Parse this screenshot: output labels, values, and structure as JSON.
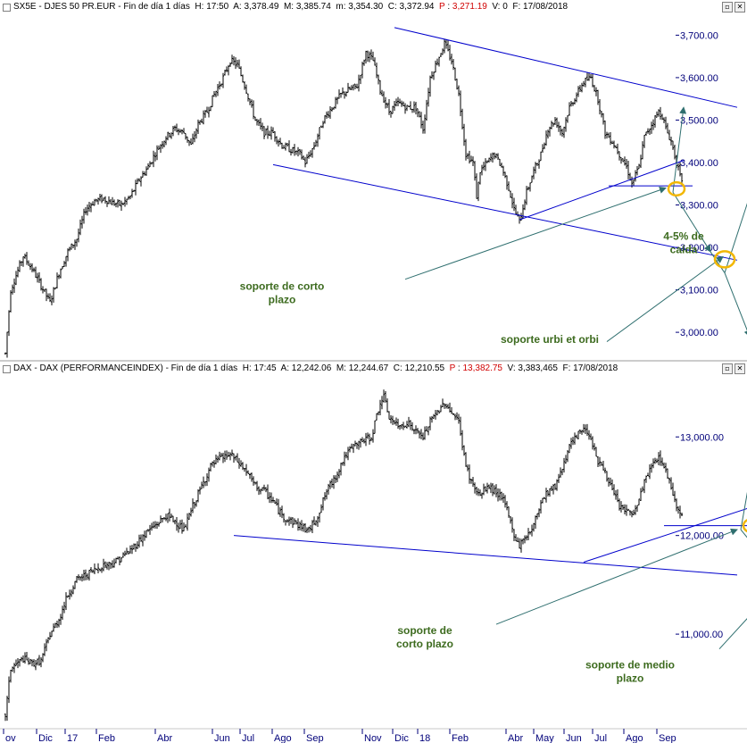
{
  "chart_data": [
    {
      "type": "ohlc",
      "header": {
        "prefix": "SX5E - DJES 50 PR.EUR - Fin de día 1 días",
        "H": "17:50",
        "A": "3,378.49",
        "M": "3,385.74",
        "m": "3,354.30",
        "C": "3,372.94",
        "P": "3,271.19",
        "V": "0",
        "F": "17/08/2018"
      },
      "y_ticks": [
        {
          "value": 3000,
          "label": "3,000.00"
        },
        {
          "value": 3100,
          "label": "3,100.00"
        },
        {
          "value": 3200,
          "label": "3,200.00"
        },
        {
          "value": 3300,
          "label": "3,300.00"
        },
        {
          "value": 3400,
          "label": "3,400.00"
        },
        {
          "value": 3500,
          "label": "3,500.00"
        },
        {
          "value": 3600,
          "label": "3,600.00"
        },
        {
          "value": 3700,
          "label": "3,700.00"
        }
      ],
      "ylim": [
        2935,
        3745
      ],
      "price_path": [
        [
          0,
          2950
        ],
        [
          3,
          3100
        ],
        [
          10,
          3180
        ],
        [
          15,
          3150
        ],
        [
          20,
          3110
        ],
        [
          25,
          3070
        ],
        [
          30,
          3140
        ],
        [
          35,
          3190
        ],
        [
          40,
          3220
        ],
        [
          45,
          3290
        ],
        [
          50,
          3310
        ],
        [
          55,
          3315
        ],
        [
          60,
          3305
        ],
        [
          65,
          3300
        ],
        [
          70,
          3320
        ],
        [
          75,
          3360
        ],
        [
          80,
          3390
        ],
        [
          85,
          3430
        ],
        [
          90,
          3460
        ],
        [
          95,
          3480
        ],
        [
          100,
          3470
        ],
        [
          104,
          3440
        ],
        [
          108,
          3490
        ],
        [
          113,
          3520
        ],
        [
          117,
          3560
        ],
        [
          122,
          3600
        ],
        [
          126,
          3640
        ],
        [
          130,
          3630
        ],
        [
          135,
          3570
        ],
        [
          140,
          3500
        ],
        [
          145,
          3470
        ],
        [
          150,
          3470
        ],
        [
          155,
          3440
        ],
        [
          160,
          3430
        ],
        [
          165,
          3420
        ],
        [
          168,
          3400
        ],
        [
          173,
          3440
        ],
        [
          178,
          3500
        ],
        [
          183,
          3530
        ],
        [
          188,
          3560
        ],
        [
          192,
          3570
        ],
        [
          197,
          3580
        ],
        [
          202,
          3660
        ],
        [
          206,
          3640
        ],
        [
          210,
          3570
        ],
        [
          215,
          3520
        ],
        [
          220,
          3540
        ],
        [
          225,
          3530
        ],
        [
          230,
          3530
        ],
        [
          234,
          3480
        ],
        [
          238,
          3600
        ],
        [
          242,
          3640
        ],
        [
          246,
          3680
        ],
        [
          250,
          3640
        ],
        [
          254,
          3560
        ],
        [
          258,
          3420
        ],
        [
          262,
          3400
        ],
        [
          264,
          3320
        ],
        [
          266,
          3380
        ],
        [
          270,
          3400
        ],
        [
          274,
          3420
        ],
        [
          278,
          3390
        ],
        [
          282,
          3340
        ],
        [
          285,
          3290
        ],
        [
          288,
          3260
        ],
        [
          292,
          3330
        ],
        [
          296,
          3380
        ],
        [
          300,
          3420
        ],
        [
          304,
          3480
        ],
        [
          308,
          3500
        ],
        [
          312,
          3470
        ],
        [
          316,
          3530
        ],
        [
          320,
          3560
        ],
        [
          324,
          3590
        ],
        [
          328,
          3600
        ],
        [
          332,
          3550
        ],
        [
          336,
          3470
        ],
        [
          340,
          3450
        ],
        [
          344,
          3420
        ],
        [
          348,
          3390
        ],
        [
          351,
          3350
        ],
        [
          355,
          3390
        ],
        [
          358,
          3460
        ],
        [
          362,
          3490
        ],
        [
          366,
          3520
        ],
        [
          368,
          3510
        ],
        [
          370,
          3480
        ],
        [
          373,
          3450
        ],
        [
          376,
          3400
        ],
        [
          379,
          3350
        ],
        [
          380,
          3373
        ]
      ],
      "lines": [
        {
          "from": [
            218,
            3718
          ],
          "to": [
            410,
            3530
          ]
        },
        {
          "from": [
            150,
            3395
          ],
          "to": [
            410,
            3170
          ]
        },
        {
          "from": [
            288,
            3265
          ],
          "to": [
            380,
            3405
          ]
        },
        {
          "from": [
            338,
            3345
          ],
          "to": [
            385,
            3345
          ]
        }
      ],
      "arrows": [
        {
          "from": [
            224,
            3125
          ],
          "to": [
            370,
            3340
          ]
        },
        {
          "from": [
            337,
            2978
          ],
          "to": [
            402,
            3178
          ]
        },
        {
          "from": [
            374,
            3330
          ],
          "to": [
            380,
            3530
          ]
        },
        {
          "from": [
            374,
            3330
          ],
          "to": [
            395,
            3190
          ]
        },
        {
          "from": [
            395,
            3190
          ],
          "to": [
            403,
            3140
          ],
          "head": false
        },
        {
          "from": [
            403,
            3140
          ],
          "to": [
            417,
            2990
          ]
        },
        {
          "from": [
            403,
            3140
          ],
          "to": [
            427,
            3450
          ]
        }
      ],
      "circles": [
        {
          "center": [
            376,
            3338
          ],
          "r": 9
        },
        {
          "center": [
            403,
            3172
          ],
          "r": 11
        }
      ],
      "annotations": [
        {
          "lines": [
            "4-5% de",
            "caída"
          ],
          "at": [
            380,
            3218
          ]
        },
        {
          "lines": [
            "soporte de corto",
            "plazo"
          ],
          "at": [
            155,
            3100
          ]
        },
        {
          "lines": [
            "soporte urbi et orbi"
          ],
          "at": [
            305,
            2975
          ]
        }
      ]
    },
    {
      "type": "ohlc",
      "header": {
        "prefix": "DAX - DAX (PERFORMANCEINDEX) - Fin de día 1 días",
        "H": "17:45",
        "A": "12,242.06",
        "M": "12,244.67",
        "m": "12,135.64",
        "C": "12,210.55",
        "P": "13,382.75",
        "V": "3,383,465",
        "F": "17/08/2018"
      },
      "y_ticks": [
        {
          "value": 11000,
          "label": "11,000.00"
        },
        {
          "value": 12000,
          "label": "12,000.00"
        },
        {
          "value": 13000,
          "label": "13,000.00"
        }
      ],
      "ylim": [
        10050,
        13600
      ],
      "price_path": [
        [
          0,
          10180
        ],
        [
          3,
          10650
        ],
        [
          10,
          10750
        ],
        [
          15,
          10700
        ],
        [
          20,
          10730
        ],
        [
          25,
          11000
        ],
        [
          30,
          11150
        ],
        [
          35,
          11400
        ],
        [
          40,
          11550
        ],
        [
          45,
          11600
        ],
        [
          50,
          11650
        ],
        [
          55,
          11700
        ],
        [
          60,
          11720
        ],
        [
          65,
          11780
        ],
        [
          70,
          11850
        ],
        [
          75,
          11950
        ],
        [
          80,
          12050
        ],
        [
          85,
          12120
        ],
        [
          90,
          12200
        ],
        [
          95,
          12150
        ],
        [
          100,
          12050
        ],
        [
          105,
          12300
        ],
        [
          110,
          12500
        ],
        [
          115,
          12700
        ],
        [
          120,
          12780
        ],
        [
          126,
          12820
        ],
        [
          130,
          12750
        ],
        [
          135,
          12650
        ],
        [
          140,
          12500
        ],
        [
          145,
          12450
        ],
        [
          150,
          12350
        ],
        [
          155,
          12200
        ],
        [
          160,
          12150
        ],
        [
          165,
          12100
        ],
        [
          170,
          12050
        ],
        [
          175,
          12200
        ],
        [
          180,
          12450
        ],
        [
          185,
          12600
        ],
        [
          190,
          12800
        ],
        [
          195,
          12900
        ],
        [
          200,
          12960
        ],
        [
          205,
          13000
        ],
        [
          210,
          13350
        ],
        [
          212,
          13400
        ],
        [
          215,
          13200
        ],
        [
          220,
          13100
        ],
        [
          225,
          13150
        ],
        [
          230,
          13050
        ],
        [
          234,
          13000
        ],
        [
          238,
          13150
        ],
        [
          242,
          13250
        ],
        [
          246,
          13350
        ],
        [
          250,
          13250
        ],
        [
          254,
          13150
        ],
        [
          258,
          12700
        ],
        [
          262,
          12500
        ],
        [
          266,
          12400
        ],
        [
          270,
          12500
        ],
        [
          274,
          12450
        ],
        [
          278,
          12400
        ],
        [
          282,
          12200
        ],
        [
          285,
          12000
        ],
        [
          288,
          11900
        ],
        [
          292,
          12000
        ],
        [
          296,
          12100
        ],
        [
          300,
          12350
        ],
        [
          304,
          12450
        ],
        [
          308,
          12500
        ],
        [
          312,
          12700
        ],
        [
          316,
          12900
        ],
        [
          320,
          13000
        ],
        [
          324,
          13100
        ],
        [
          328,
          13000
        ],
        [
          332,
          12750
        ],
        [
          336,
          12650
        ],
        [
          340,
          12450
        ],
        [
          344,
          12300
        ],
        [
          348,
          12250
        ],
        [
          351,
          12200
        ],
        [
          355,
          12350
        ],
        [
          358,
          12550
        ],
        [
          362,
          12700
        ],
        [
          366,
          12800
        ],
        [
          368,
          12750
        ],
        [
          370,
          12650
        ],
        [
          373,
          12500
        ],
        [
          376,
          12300
        ],
        [
          379,
          12220
        ],
        [
          380,
          12210
        ]
      ],
      "lines": [
        {
          "from": [
            128,
            12000
          ],
          "to": [
            410,
            11600
          ]
        },
        {
          "from": [
            324,
            11730
          ],
          "to": [
            420,
            12300
          ]
        },
        {
          "from": [
            369,
            12100
          ],
          "to": [
            420,
            12100
          ]
        }
      ],
      "arrows": [
        {
          "from": [
            275,
            11100
          ],
          "to": [
            410,
            12060
          ]
        },
        {
          "from": [
            400,
            10850
          ],
          "to": [
            437,
            11580
          ]
        },
        {
          "from": [
            412,
            12060
          ],
          "to": [
            422,
            13080
          ]
        },
        {
          "from": [
            412,
            12060
          ],
          "to": [
            432,
            11620
          ]
        },
        {
          "from": [
            432,
            11620
          ],
          "to": [
            439,
            11550
          ],
          "head": false
        },
        {
          "from": [
            439,
            11550
          ],
          "to": [
            441,
            10590
          ]
        },
        {
          "from": [
            439,
            11550
          ],
          "to": [
            448,
            12640
          ]
        }
      ],
      "circles": [
        {
          "center": [
            418,
            12100
          ],
          "r": 9
        },
        {
          "center": [
            441,
            11560
          ],
          "r": 12
        }
      ],
      "annotations": [
        {
          "lines": [
            "soporte de",
            "corto plazo"
          ],
          "at": [
            235,
            11000
          ]
        },
        {
          "lines": [
            "soporte de medio",
            "plazo"
          ],
          "at": [
            350,
            10650
          ]
        }
      ]
    }
  ],
  "x_axis": {
    "labels": [
      {
        "label": "ov",
        "slot": 8
      },
      {
        "label": "Dic",
        "slot": 45
      },
      {
        "label": "17",
        "slot": 77
      },
      {
        "label": "Feb",
        "slot": 112
      },
      {
        "label": "Abr",
        "slot": 178
      },
      {
        "label": "Jun",
        "slot": 242
      },
      {
        "label": "Jul",
        "slot": 273
      },
      {
        "label": "Ago",
        "slot": 309
      },
      {
        "label": "Sep",
        "slot": 345
      },
      {
        "label": "Nov",
        "slot": 410
      },
      {
        "label": "Dic",
        "slot": 444
      },
      {
        "label": "18",
        "slot": 472
      },
      {
        "label": "Feb",
        "slot": 508
      },
      {
        "label": "Abr",
        "slot": 571
      },
      {
        "label": "May",
        "slot": 602
      },
      {
        "label": "Jun",
        "slot": 636
      },
      {
        "label": "Jul",
        "slot": 668
      },
      {
        "label": "Ago",
        "slot": 703
      },
      {
        "label": "Sep",
        "slot": 740
      }
    ]
  },
  "colors": {
    "price": "#000000",
    "trend_lines": "#0000cc",
    "arrows": "#2f6f6f",
    "circles": "#f2b705",
    "annotation_text": "#3d6b1f",
    "axis_text": "#00007a",
    "red_value": "#d00000"
  }
}
